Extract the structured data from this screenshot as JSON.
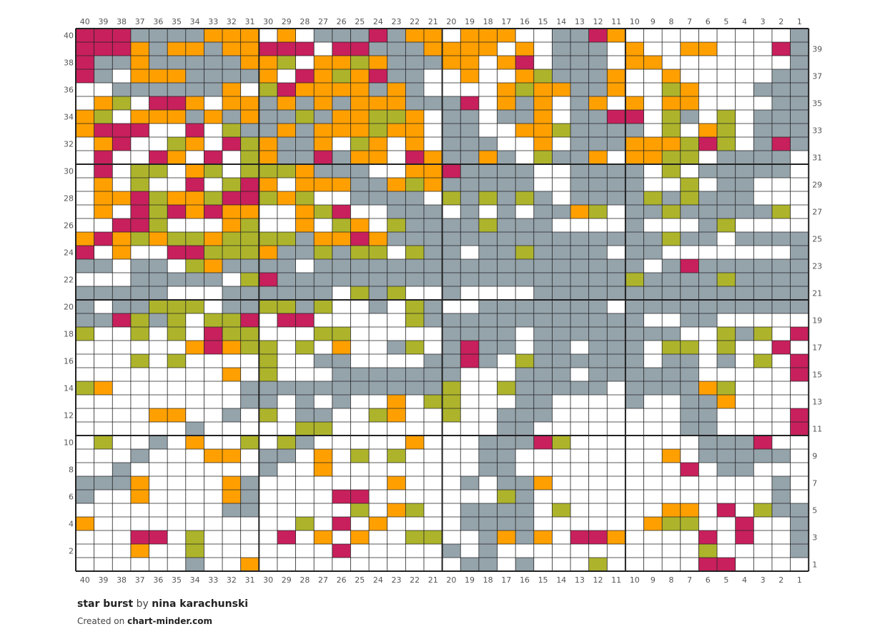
{
  "chart": {
    "title": "star burst",
    "by_word": "by",
    "author": "nina karachunski",
    "credit_prefix": "Created on",
    "credit_site": "chart-minder.com"
  },
  "palette": {
    "W": "#ffffff",
    "G": "#95a3ab",
    "O": "#ffa000",
    "M": "#c8205c",
    "L": "#adb42b"
  },
  "grid_line_color": "#222222",
  "chart_data": {
    "type": "heatmap",
    "columns": 40,
    "rows": 40,
    "column_numbers_left_to_right": [
      40,
      39,
      38,
      37,
      36,
      35,
      34,
      33,
      32,
      31,
      30,
      29,
      28,
      27,
      26,
      25,
      24,
      23,
      22,
      21,
      20,
      19,
      18,
      17,
      16,
      15,
      14,
      13,
      12,
      11,
      10,
      9,
      8,
      7,
      6,
      5,
      4,
      3,
      2,
      1
    ],
    "row_numbers_top_to_bottom": [
      40,
      39,
      38,
      37,
      36,
      35,
      34,
      33,
      32,
      31,
      30,
      29,
      28,
      27,
      26,
      25,
      24,
      23,
      22,
      21,
      20,
      19,
      18,
      17,
      16,
      15,
      14,
      13,
      12,
      11,
      10,
      9,
      8,
      7,
      6,
      5,
      4,
      3,
      2,
      1
    ],
    "left_row_labels": [
      40,
      38,
      36,
      34,
      32,
      30,
      28,
      26,
      24,
      22,
      20,
      18,
      16,
      14,
      12,
      10,
      8,
      6,
      4,
      2
    ],
    "right_row_labels": [
      39,
      37,
      35,
      33,
      31,
      29,
      27,
      25,
      23,
      21,
      19,
      17,
      15,
      13,
      11,
      9,
      7,
      5,
      3,
      1
    ],
    "legend": {
      "W": "white",
      "G": "grey",
      "O": "orange",
      "M": "magenta",
      "L": "lime"
    },
    "cells": [
      "MMMGGGGOOOWOWGGGMGOOWOOOWWGGMOWWWWWWWWWG",
      "MMMOGOOGOOMMMWMMGGGOOOOWOWGGGWOWWOOWWWMG",
      "MGGOGGGGGOOLWOOLOGGGOOWOMWGGGWOOWWWWWWWG",
      "MGWOOOGGGGOWMOLOMGGWWOWWOLGGGOWWOWWWWWGG",
      "WWGGGGGGOWLMOOOOGOGWWWWOLOOGGOWWLOWWWGGG",
      "WOLWMMOWOOGOGOGOOOGGGMWOGOWGOWOWOOWWWWGG",
      "OLWOOOGOGOGGLGOOLLOWGGWGGOWGGMMWLGWLWGGG",
      "OMMMWWMWLGGOGOOOLOOWGGWWOOLGGGGWLWOLWGGG",
      "WOMWWLOWMLOGGOWLOWOWGGGWWOWGGGOOOLMLWGMG",
      "WMWWMOWMWLOGGMGOOWMOGGOGWLGGOWOOLLWGGGGW",
      "WMWLLWOLWLLLOGGGWWOOMGGGGWWGGGGWLWGGGGGW",
      "WOWLWWMWLMOWOOOGGOLOGGGGGWWGGGGWWLWGGWWW",
      "WOOMLOOLMMLOLWWGGGGWLGLGLGWGGGGLGLGGGWWW",
      "WOWMLMOMOOWWOLMWWGGGWGWGWGGOLWGGLGGGGGLW",
      "WWMMLWWWOLWWOWLOWLGGGGLGGGWWWWGWWWGLWWWW",
      "OMOLOLLOLLLLGOOMOGGGGGGGGGGGGGGGLGGWGGGG",
      "MWOWWMMLLLOGGLGLLWLGGWGGLGGGGWGGWWWWWWWG",
      "GGWGGWLOGGGGWGGGGGGGGGGGGGGGGGGWGMGGGGGG",
      "WWWGGGGGWLMGGGGGGGGGGGGGGGGGGGLGGGGLGGGG",
      "GGGGGWWWGGGGGGWLGLWWGWWWWGGGGGGGGGGGGGGG",
      "GWGGLLLWGGLLGLWWGWLGWWGGGGGGGWGGGGGGGGGG",
      "GGMLGLWLLMWMMWWWWWLGGGGGGGGGGGGWWGGWWWWW",
      "LWWLWLWMLLWWWLLWWWWWGGGGWGGGGGGGGWWLGLWM",
      "WWWWWWOMOLLWLWOWWGLWGMGGWGGWGGGWLLWLWWMW",
      "WWWLWLWWWWLWWGGWWWWGGMGWLGGGGGGWGGWGWLWM",
      "WWWWWWWWOWLWWWGGGGGGGWWWGGGWGGGGGGWWWWWM",
      "LOWWWWWWWGGGGGGGGGGGLWWLGGGGGWGGGGOLWWWW",
      "WWWWWWWWWGGWGWGWWOWLLWWWGGWWWWGWWGGOWWWW",
      "WWWWOOWWGWLWGGWWLOWWLWWGGGWWWWWWWGGWWWWM",
      "WWWWWWGWWWWWLLWWWWWWWWWGGWWWWWWWWGGWWWWM",
      "WLWWGWOWWLWLGWWWWWOWWWGGGMLWWWWWWWGGGMWW",
      "WWWGWWWOOWGGWOWLWLWWWWGGWWWWWWWWOWGGGGGW",
      "WWGWWWWWWWGWWOWWWWWWWWGGWWWWWWWWWMWGGWWW",
      "GGGOWWWWOGWWWWWWWOWWWGWGGOWWWWWWWWWWWWGW",
      "GWWOWWWWOGWWWWMMWWWWWWWLGWWWWWWWWWWWWWGW",
      "WWWWWWWWGGWWWWWLWOLWWGGGGWLWWWWWOOWMWLGG",
      "OWWWWWWWWWWWLWMWOWWWWGGGGWWWWWWOLLWWMWWG",
      "WWWMMWLWWWWMWOWOWWLLWWGOGOWMMOWWWWMWMWWG",
      "WWWOWWLWWWWWWWMWWWWWGWGWWWWWWWWWWWLWWWWG",
      "WWWWWWGWWOWWWWWWWWWWWGGWGWWWLWWWWWMMWWWW"
    ]
  }
}
